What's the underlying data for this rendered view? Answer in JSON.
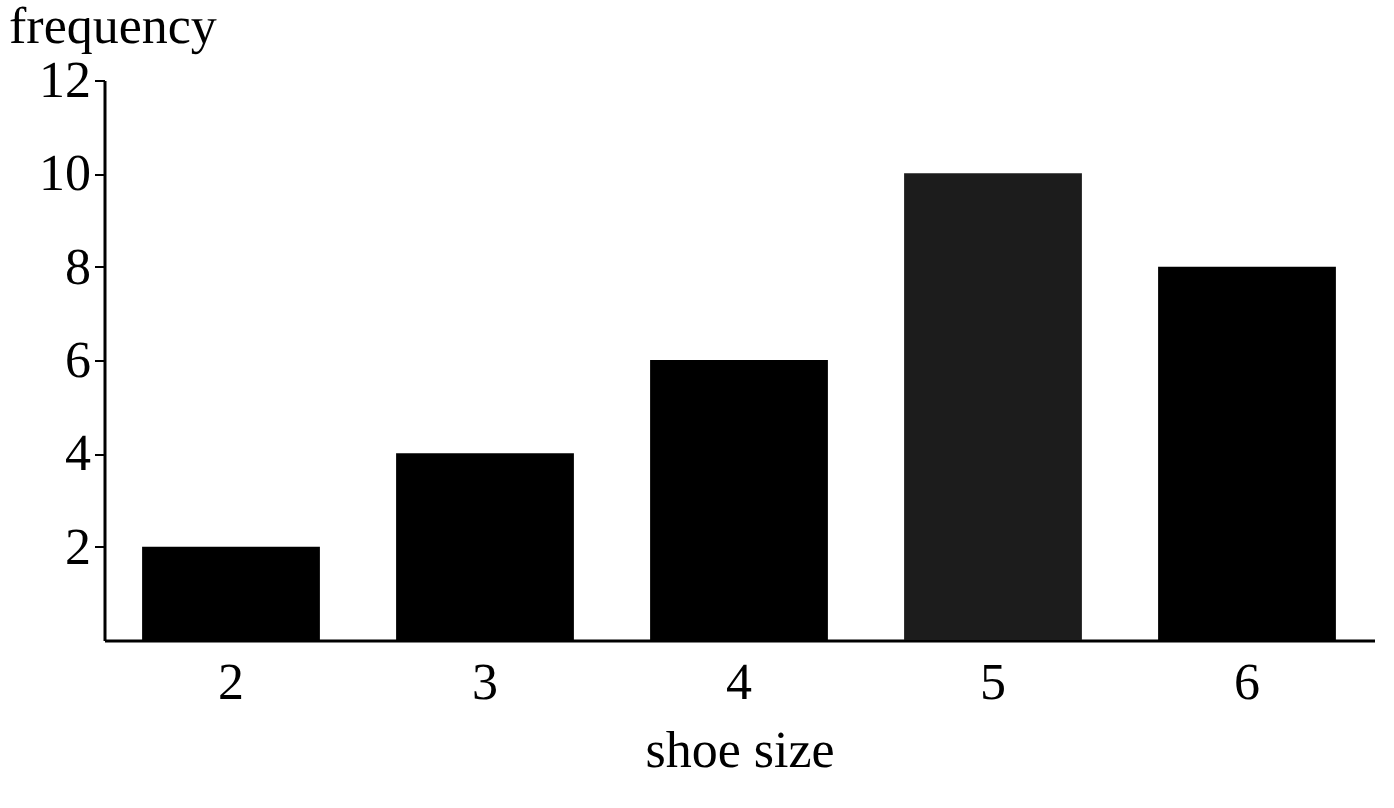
{
  "chart_data": {
    "type": "bar",
    "xlabel": "shoe size",
    "ylabel": "frequency",
    "categories": [
      "2",
      "3",
      "4",
      "5",
      "6"
    ],
    "values": [
      2,
      4,
      6,
      10,
      8
    ],
    "colors": [
      "#000000",
      "#000000",
      "#000000",
      "#1c1c1c",
      "#000000"
    ],
    "ylim": [
      0,
      12
    ],
    "yticks": [
      2,
      4,
      6,
      8,
      10,
      12
    ],
    "grid": false
  }
}
